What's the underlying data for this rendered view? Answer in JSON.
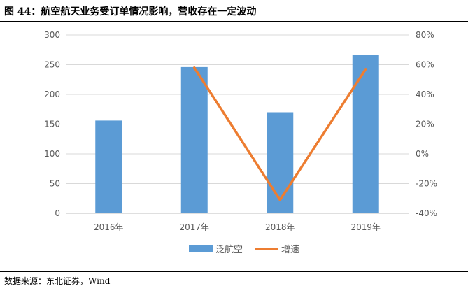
{
  "header": {
    "title": "图 44：航空航天业务受订单情况影响，营收存在一定波动"
  },
  "footer": {
    "source": "数据来源：东北证券，Wind"
  },
  "chart_data": {
    "type": "bar",
    "categories": [
      "2016年",
      "2017年",
      "2018年",
      "2019年"
    ],
    "series": [
      {
        "name": "泛航空",
        "type": "bar",
        "axis": "left",
        "values": [
          156,
          246,
          170,
          266
        ],
        "color": "#5B9BD5"
      },
      {
        "name": "增速",
        "type": "line",
        "axis": "right",
        "values": [
          null,
          0.58,
          -0.31,
          0.57
        ],
        "color": "#ED7D31"
      }
    ],
    "y_left": {
      "ticks": [
        "0",
        "50",
        "100",
        "150",
        "200",
        "250",
        "300"
      ],
      "range": [
        0,
        300
      ]
    },
    "y_right": {
      "ticks": [
        "-40%",
        "-20%",
        "0%",
        "20%",
        "40%",
        "60%",
        "80%"
      ],
      "range": [
        -0.4,
        0.8
      ]
    },
    "grid": true,
    "legend": "bottom"
  }
}
